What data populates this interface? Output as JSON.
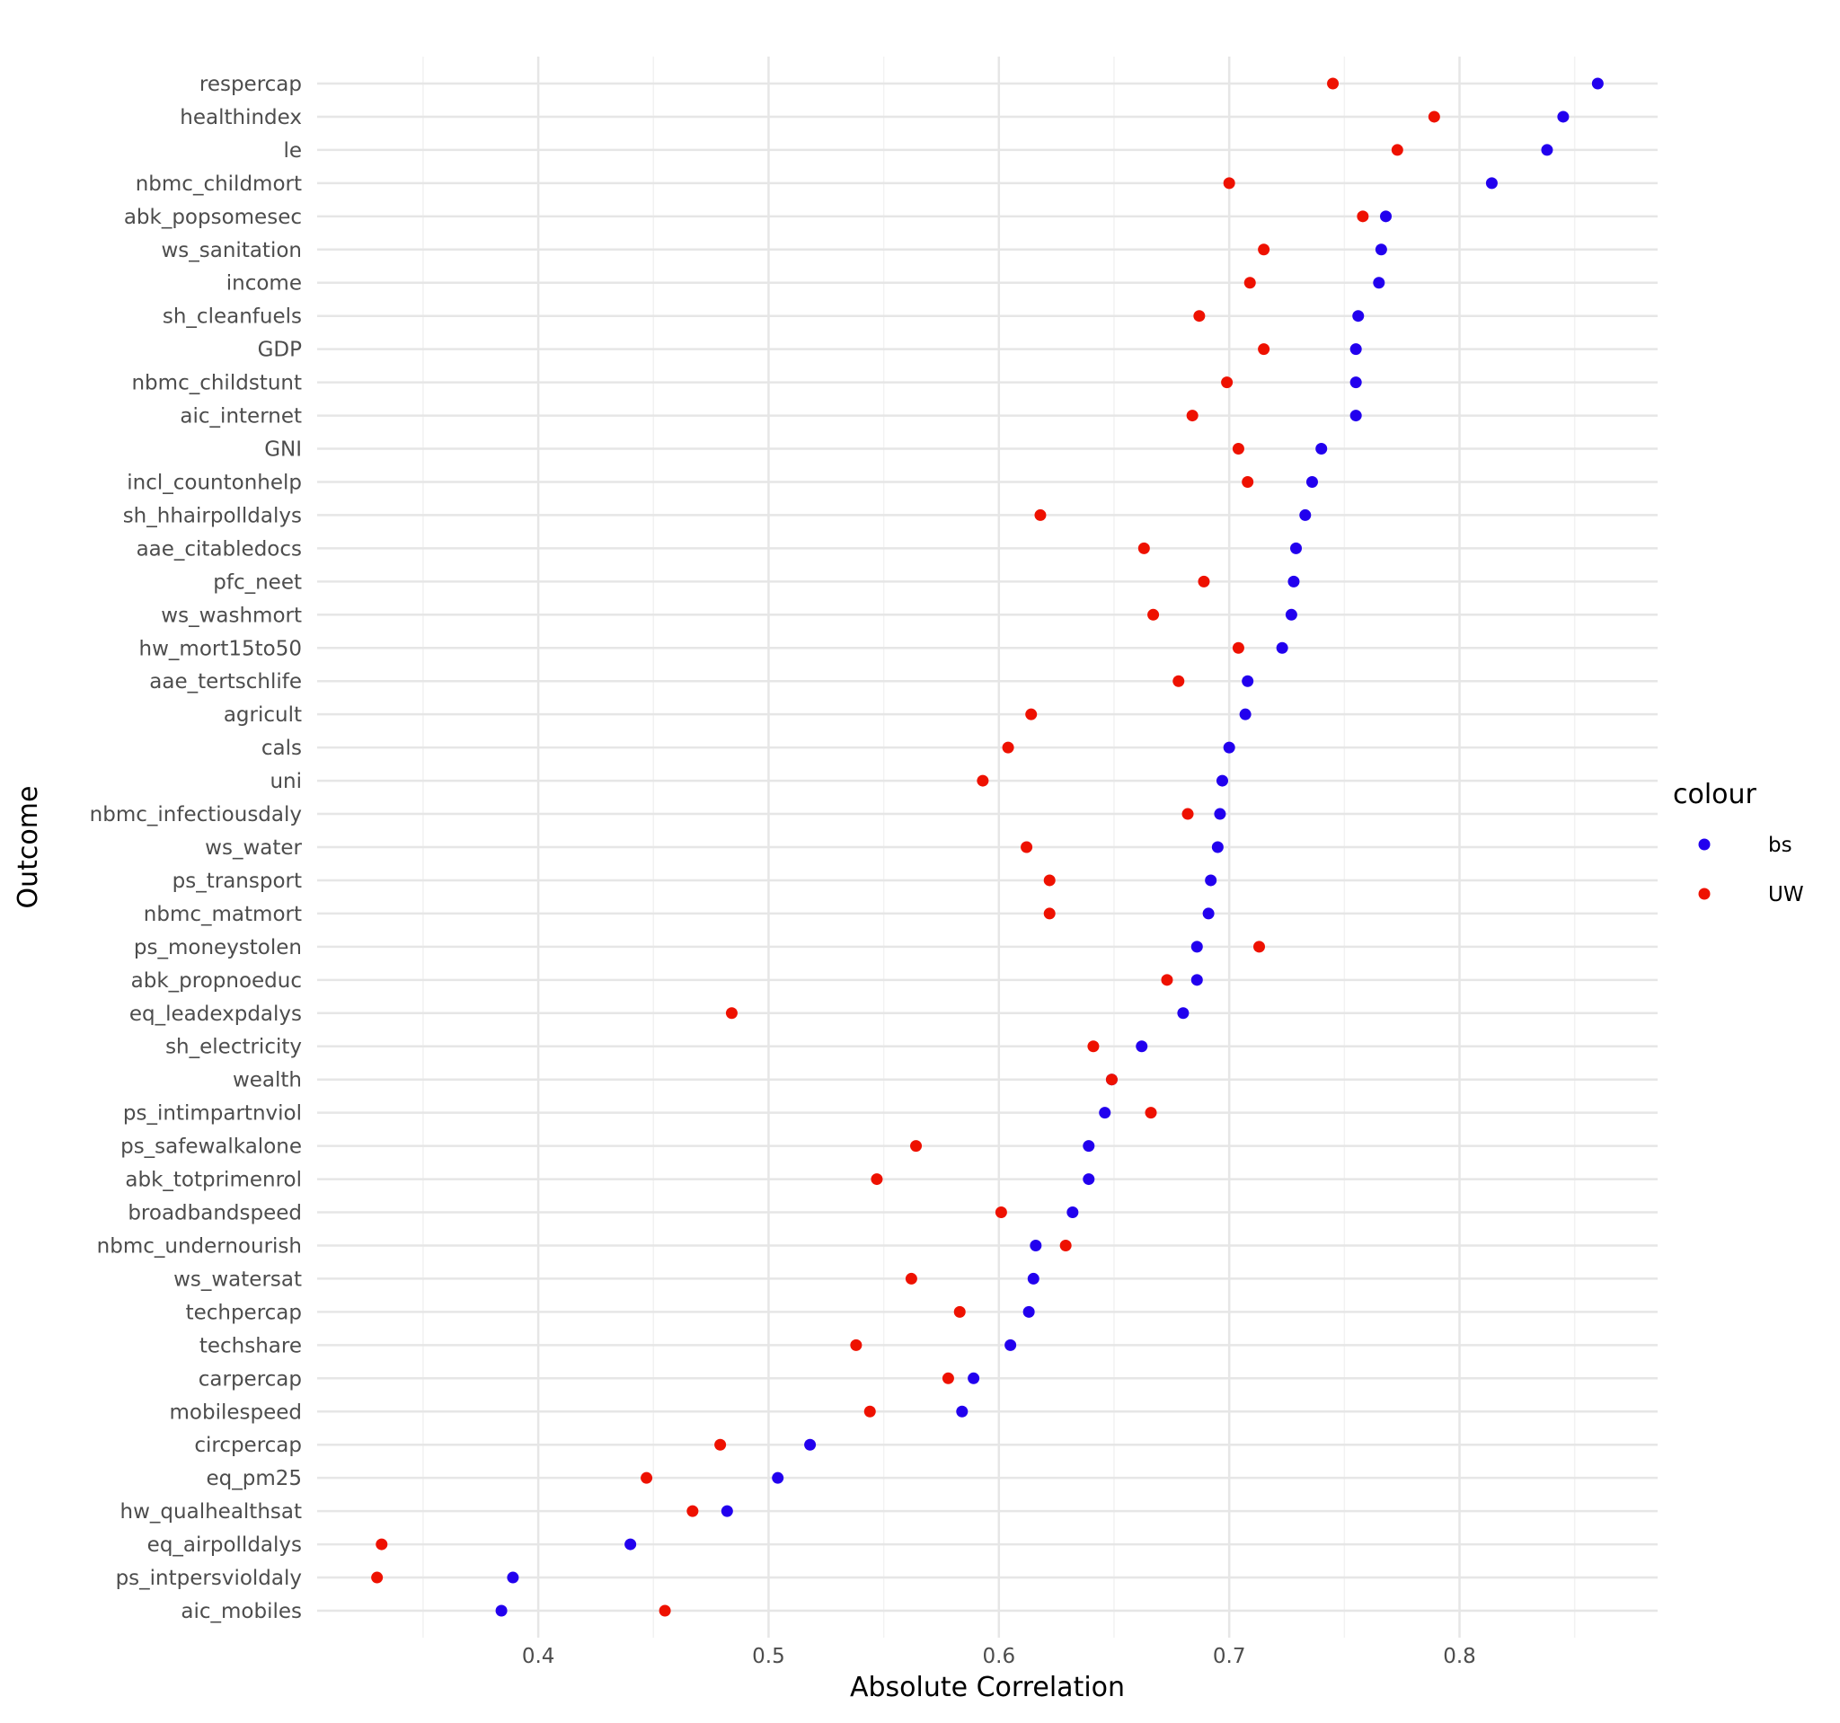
{
  "chart_data": {
    "type": "scatter",
    "xlabel": "Absolute Correlation",
    "ylabel": "Outcome",
    "xlim": [
      0.304,
      0.886
    ],
    "x_ticks": [
      0.4,
      0.5,
      0.6,
      0.7,
      0.8
    ],
    "x_tick_labels": [
      "0.4",
      "0.5",
      "0.6",
      "0.7",
      "0.8"
    ],
    "grid": true,
    "legend": {
      "title": "colour",
      "placement": "right",
      "entries": [
        "bs",
        "UW"
      ]
    },
    "colors": {
      "bs": "#2200EE",
      "UW": "#EE1100"
    },
    "categories": [
      "respercap",
      "healthindex",
      "le",
      "nbmc_childmort",
      "abk_popsomesec",
      "ws_sanitation",
      "income",
      "sh_cleanfuels",
      "GDP",
      "nbmc_childstunt",
      "aic_internet",
      "GNI",
      "incl_countonhelp",
      "sh_hhairpolldalys",
      "aae_citabledocs",
      "pfc_neet",
      "ws_washmort",
      "hw_mort15to50",
      "aae_tertschlife",
      "agricult",
      "cals",
      "uni",
      "nbmc_infectiousdaly",
      "ws_water",
      "ps_transport",
      "nbmc_matmort",
      "ps_moneystolen",
      "abk_propnoeduc",
      "eq_leadexpdalys",
      "sh_electricity",
      "wealth",
      "ps_intimpartnviol",
      "ps_safewalkalone",
      "abk_totprimenrol",
      "broadbandspeed",
      "nbmc_undernourish",
      "ws_watersat",
      "techpercap",
      "techshare",
      "carpercap",
      "mobilespeed",
      "circpercap",
      "eq_pm25",
      "hw_qualhealthsat",
      "eq_airpolldalys",
      "ps_intpersvioldaly",
      "aic_mobiles"
    ],
    "series": [
      {
        "name": "bs",
        "values": [
          0.86,
          0.845,
          0.838,
          0.814,
          0.768,
          0.766,
          0.765,
          0.756,
          0.755,
          0.755,
          0.755,
          0.74,
          0.736,
          0.733,
          0.729,
          0.728,
          0.727,
          0.723,
          0.708,
          0.707,
          0.7,
          0.697,
          0.696,
          0.695,
          0.692,
          0.691,
          0.686,
          0.686,
          0.68,
          0.662,
          0.649,
          0.646,
          0.639,
          0.639,
          0.632,
          0.616,
          0.615,
          0.613,
          0.605,
          0.589,
          0.584,
          0.518,
          0.504,
          0.482,
          0.44,
          0.389,
          0.384
        ]
      },
      {
        "name": "UW",
        "values": [
          0.745,
          0.789,
          0.773,
          0.7,
          0.758,
          0.715,
          0.709,
          0.687,
          0.715,
          0.699,
          0.684,
          0.704,
          0.708,
          0.618,
          0.663,
          0.689,
          0.667,
          0.704,
          0.678,
          0.614,
          0.604,
          0.593,
          0.682,
          0.612,
          0.622,
          0.622,
          0.713,
          0.673,
          0.484,
          0.641,
          0.649,
          0.666,
          0.564,
          0.547,
          0.601,
          0.629,
          0.562,
          0.583,
          0.538,
          0.578,
          0.544,
          0.479,
          0.447,
          0.467,
          0.332,
          0.33,
          0.455
        ]
      }
    ]
  }
}
